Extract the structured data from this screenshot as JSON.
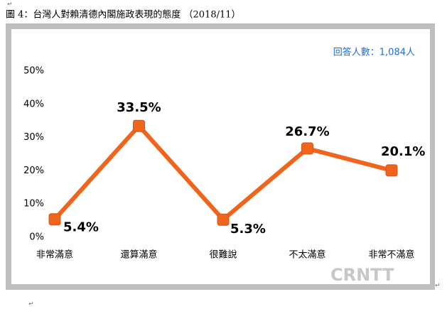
{
  "chart_data": {
    "type": "line",
    "title": "圖 4：台灣人對賴清德內閣施政表現的態度 （2018/11）",
    "annotation": "回答人數：1,084人",
    "watermark": "CRNTT",
    "categories": [
      "非常滿意",
      "還算滿意",
      "很難說",
      "不太滿意",
      "非常不滿意"
    ],
    "values": [
      5.4,
      33.5,
      5.3,
      26.7,
      20.1
    ],
    "value_labels": [
      "5.4%",
      "33.5%",
      "5.3%",
      "26.7%",
      "20.1%"
    ],
    "color": "#f0641c",
    "ylim": [
      0,
      50
    ],
    "yticks": [
      {
        "value": 0,
        "label": "0%"
      },
      {
        "value": 10,
        "label": "10%"
      },
      {
        "value": 20,
        "label": "20%"
      },
      {
        "value": 30,
        "label": "30%"
      },
      {
        "value": 40,
        "label": "40%"
      },
      {
        "value": 50,
        "label": "50%"
      }
    ],
    "grid": false
  }
}
